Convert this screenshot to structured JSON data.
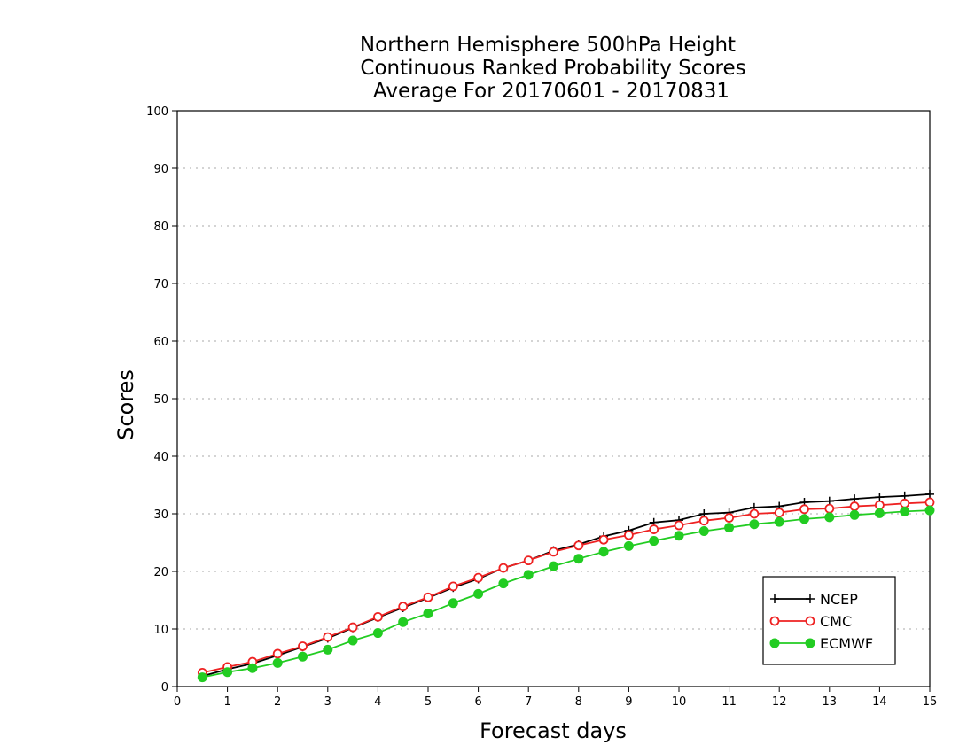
{
  "chart_data": {
    "type": "line",
    "title": [
      "Northern Hemisphere 500hPa Height",
      "Continuous Ranked Probability Scores",
      "Average For 20170601 - 20170831"
    ],
    "xlabel": "Forecast days",
    "ylabel": "Scores",
    "xlim": [
      0,
      15
    ],
    "ylim": [
      0,
      100
    ],
    "xticks": [
      0,
      1,
      2,
      3,
      4,
      5,
      6,
      7,
      8,
      9,
      10,
      11,
      12,
      13,
      14,
      15
    ],
    "yticks": [
      0,
      10,
      20,
      30,
      40,
      50,
      60,
      70,
      80,
      90,
      100
    ],
    "grid": "horizontal dotted",
    "legend_position": "bottom-right",
    "x": [
      0.5,
      1,
      1.5,
      2,
      2.5,
      3,
      3.5,
      4,
      4.5,
      5,
      5.5,
      6,
      6.5,
      7,
      7.5,
      8,
      8.5,
      9,
      9.5,
      10,
      10.5,
      11,
      11.5,
      12,
      12.5,
      13,
      13.5,
      14,
      14.5,
      15
    ],
    "series": [
      {
        "name": "NCEP",
        "color": "#000000",
        "marker": "plus",
        "values": [
          1.8,
          3.0,
          4.0,
          5.4,
          6.9,
          8.4,
          10.2,
          12.0,
          13.7,
          15.4,
          17.2,
          18.7,
          20.6,
          21.9,
          23.6,
          24.7,
          26.1,
          27.1,
          28.5,
          28.9,
          30.0,
          30.2,
          31.1,
          31.3,
          32.0,
          32.2,
          32.6,
          32.9,
          33.1,
          33.4
        ]
      },
      {
        "name": "CMC",
        "color": "#ee2222",
        "marker": "open-circle",
        "values": [
          2.4,
          3.4,
          4.3,
          5.7,
          7.0,
          8.6,
          10.3,
          12.1,
          13.9,
          15.5,
          17.4,
          18.9,
          20.6,
          21.9,
          23.4,
          24.5,
          25.5,
          26.3,
          27.3,
          28.0,
          28.8,
          29.3,
          30.0,
          30.2,
          30.8,
          30.9,
          31.3,
          31.5,
          31.8,
          32.0
        ]
      },
      {
        "name": "ECMWF",
        "color": "#22cc22",
        "marker": "filled-circle",
        "values": [
          1.6,
          2.5,
          3.2,
          4.1,
          5.2,
          6.4,
          8.0,
          9.3,
          11.2,
          12.7,
          14.5,
          16.1,
          17.9,
          19.4,
          20.9,
          22.2,
          23.4,
          24.4,
          25.3,
          26.2,
          27.0,
          27.6,
          28.2,
          28.6,
          29.1,
          29.4,
          29.8,
          30.1,
          30.4,
          30.6
        ]
      }
    ]
  }
}
